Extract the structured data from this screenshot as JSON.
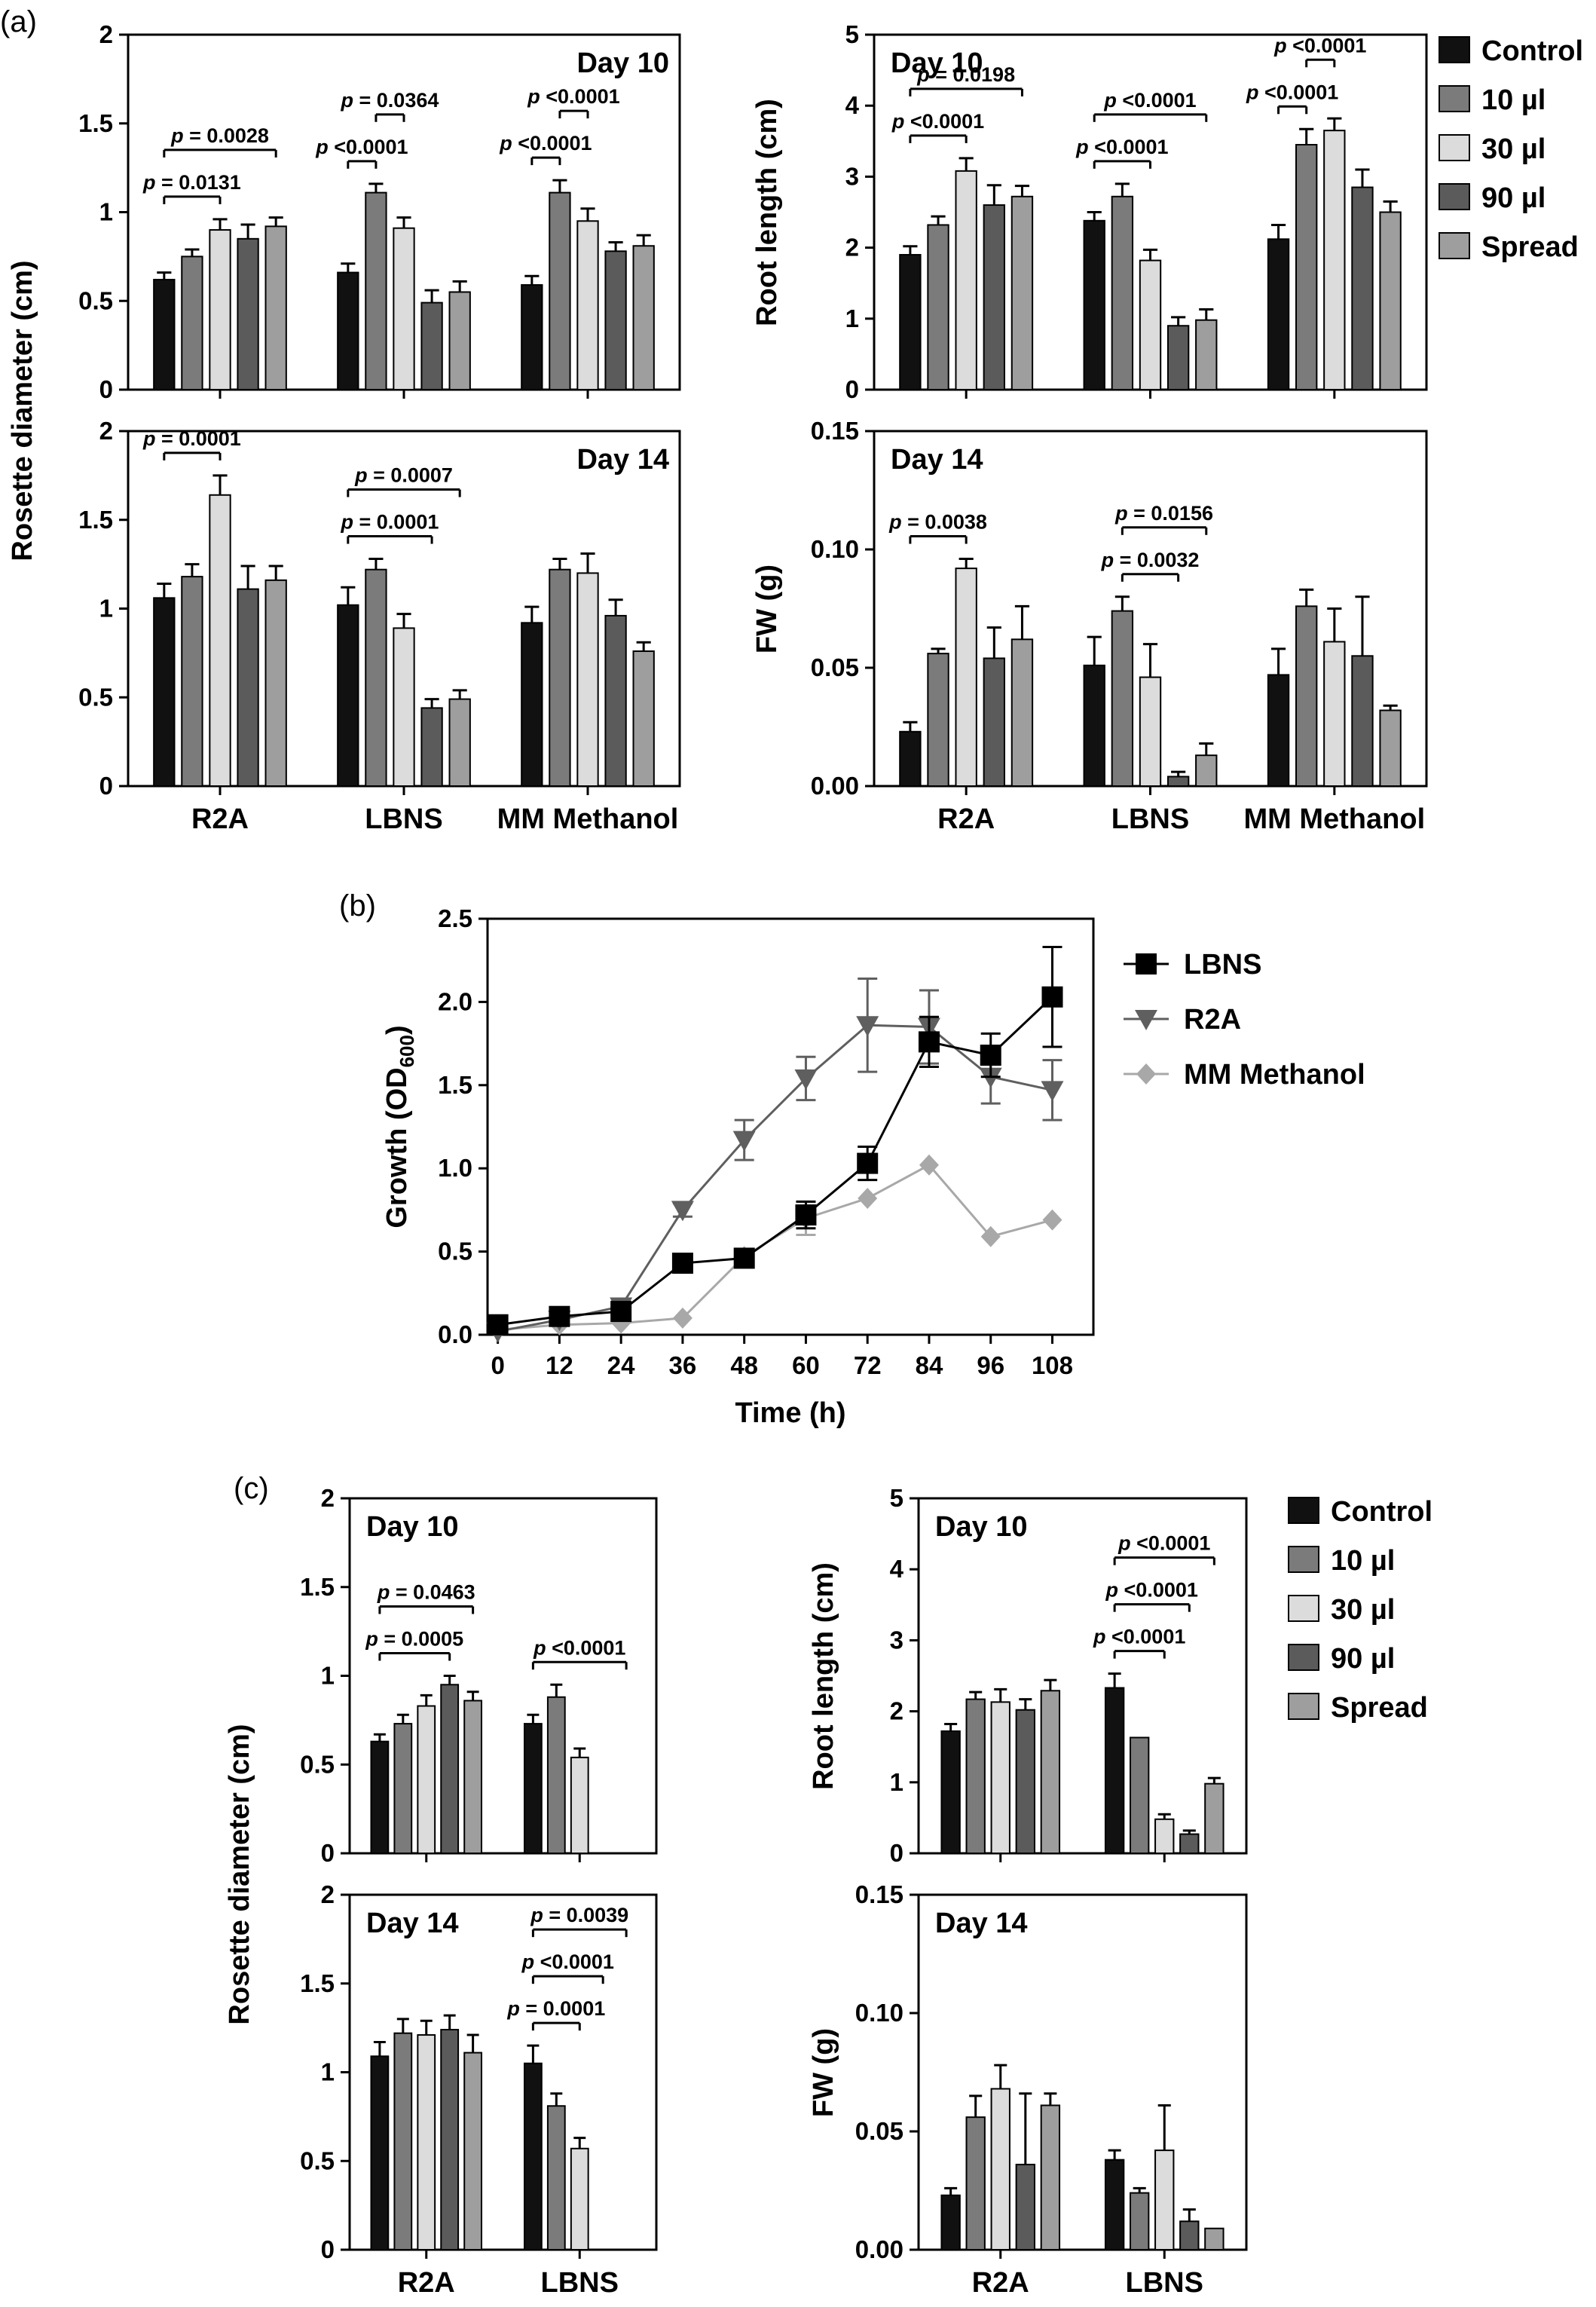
{
  "chart_data": [
    {
      "id": "a_rd10",
      "panel": "(a)",
      "type": "bar",
      "title": "Day 10",
      "ylabel": "Rosette diameter (cm)",
      "ylim": [
        0,
        2
      ],
      "yticks": [
        0,
        0.5,
        1,
        1.5,
        2
      ],
      "ytick_labels": [
        "0",
        "0.5",
        "1",
        "1.5",
        "2"
      ],
      "show_xlabels": false,
      "categories": [
        "R2A",
        "LBNS",
        "MM Methanol"
      ],
      "series": [
        {
          "name": "Control",
          "color": "#111111",
          "values": [
            0.62,
            0.66,
            0.59
          ],
          "errors": [
            0.04,
            0.05,
            0.05
          ]
        },
        {
          "name": "10 µl",
          "color": "#7b7b7b",
          "values": [
            0.75,
            1.11,
            1.11
          ],
          "errors": [
            0.04,
            0.05,
            0.07
          ]
        },
        {
          "name": "30 µl",
          "color": "#dcdcdc",
          "values": [
            0.9,
            0.91,
            0.95
          ],
          "errors": [
            0.06,
            0.06,
            0.07
          ]
        },
        {
          "name": "90 µl",
          "color": "#5b5b5b",
          "values": [
            0.85,
            0.49,
            0.78
          ],
          "errors": [
            0.08,
            0.07,
            0.05
          ]
        },
        {
          "name": "Spread",
          "color": "#9e9e9e",
          "values": [
            0.92,
            0.55,
            0.81
          ],
          "errors": [
            0.05,
            0.06,
            0.06
          ]
        }
      ],
      "brackets": [
        {
          "label": "p = 0.0131",
          "group": 0,
          "from": 0,
          "to": 2
        },
        {
          "label": "p = 0.0028",
          "group": 0,
          "from": 0,
          "to": 4
        },
        {
          "label": "p <0.0001",
          "group": 1,
          "from": 0,
          "to": 1
        },
        {
          "label": "p = 0.0364",
          "group": 1,
          "from": 1,
          "to": 2
        },
        {
          "label": "p <0.0001",
          "group": 2,
          "from": 0,
          "to": 1
        },
        {
          "label": "p <0.0001",
          "group": 2,
          "from": 1,
          "to": 2
        }
      ]
    },
    {
      "id": "a_rd14",
      "panel": "(a)",
      "type": "bar",
      "title": "Day 14",
      "ylabel": "Rosette diameter (cm)",
      "ylim": [
        0,
        2
      ],
      "yticks": [
        0,
        0.5,
        1,
        1.5,
        2
      ],
      "ytick_labels": [
        "0",
        "0.5",
        "1",
        "1.5",
        "2"
      ],
      "show_xlabels": true,
      "categories": [
        "R2A",
        "LBNS",
        "MM Methanol"
      ],
      "series": [
        {
          "name": "Control",
          "color": "#111111",
          "values": [
            1.06,
            1.02,
            0.92
          ],
          "errors": [
            0.08,
            0.1,
            0.09
          ]
        },
        {
          "name": "10 µl",
          "color": "#7b7b7b",
          "values": [
            1.18,
            1.22,
            1.22
          ],
          "errors": [
            0.07,
            0.06,
            0.06
          ]
        },
        {
          "name": "30 µl",
          "color": "#dcdcdc",
          "values": [
            1.64,
            0.89,
            1.2
          ],
          "errors": [
            0.11,
            0.08,
            0.11
          ]
        },
        {
          "name": "90 µl",
          "color": "#5b5b5b",
          "values": [
            1.11,
            0.44,
            0.96
          ],
          "errors": [
            0.13,
            0.05,
            0.09
          ]
        },
        {
          "name": "Spread",
          "color": "#9e9e9e",
          "values": [
            1.16,
            0.49,
            0.76
          ],
          "errors": [
            0.08,
            0.05,
            0.05
          ]
        }
      ],
      "brackets": [
        {
          "label": "p = 0.0001",
          "group": 0,
          "from": 0,
          "to": 2
        },
        {
          "label": "p = 0.0001",
          "group": 1,
          "from": 0,
          "to": 3
        },
        {
          "label": "p = 0.0007",
          "group": 1,
          "from": 0,
          "to": 4
        }
      ]
    },
    {
      "id": "a_rl10",
      "panel": "(a)",
      "type": "bar",
      "title": "Day 10",
      "ylabel": "Root length (cm)",
      "ylim": [
        0,
        5
      ],
      "yticks": [
        0,
        1,
        2,
        3,
        4,
        5
      ],
      "ytick_labels": [
        "0",
        "1",
        "2",
        "3",
        "4",
        "5"
      ],
      "show_xlabels": false,
      "categories": [
        "R2A",
        "LBNS",
        "MM Methanol"
      ],
      "series": [
        {
          "name": "Control",
          "color": "#111111",
          "values": [
            1.9,
            2.38,
            2.12
          ],
          "errors": [
            0.12,
            0.12,
            0.2
          ]
        },
        {
          "name": "10 µl",
          "color": "#7b7b7b",
          "values": [
            2.32,
            2.72,
            3.45
          ],
          "errors": [
            0.12,
            0.18,
            0.22
          ]
        },
        {
          "name": "30 µl",
          "color": "#dcdcdc",
          "values": [
            3.08,
            1.82,
            3.65
          ],
          "errors": [
            0.18,
            0.15,
            0.17
          ]
        },
        {
          "name": "90 µl",
          "color": "#5b5b5b",
          "values": [
            2.6,
            0.9,
            2.85
          ],
          "errors": [
            0.28,
            0.12,
            0.25
          ]
        },
        {
          "name": "Spread",
          "color": "#9e9e9e",
          "values": [
            2.72,
            0.98,
            2.5
          ],
          "errors": [
            0.15,
            0.15,
            0.15
          ]
        }
      ],
      "brackets": [
        {
          "label": "p <0.0001",
          "group": 0,
          "from": 0,
          "to": 2
        },
        {
          "label": "p = 0.0198",
          "group": 0,
          "from": 0,
          "to": 4
        },
        {
          "label": "p <0.0001",
          "group": 1,
          "from": 0,
          "to": 2
        },
        {
          "label": "p <0.0001",
          "group": 1,
          "from": 0,
          "to": 4
        },
        {
          "label": "p <0.0001",
          "group": 2,
          "from": 0,
          "to": 1
        },
        {
          "label": "p <0.0001",
          "group": 2,
          "from": 1,
          "to": 2
        }
      ]
    },
    {
      "id": "a_fw14",
      "panel": "(a)",
      "type": "bar",
      "title": "Day 14",
      "ylabel": "FW (g)",
      "ylim": [
        0,
        0.15
      ],
      "yticks": [
        0,
        0.05,
        0.1,
        0.15
      ],
      "ytick_labels": [
        "0.00",
        "0.05",
        "0.10",
        "0.15"
      ],
      "show_xlabels": true,
      "categories": [
        "R2A",
        "LBNS",
        "MM Methanol"
      ],
      "series": [
        {
          "name": "Control",
          "color": "#111111",
          "values": [
            0.023,
            0.051,
            0.047
          ],
          "errors": [
            0.004,
            0.012,
            0.011
          ]
        },
        {
          "name": "10 µl",
          "color": "#7b7b7b",
          "values": [
            0.056,
            0.074,
            0.076
          ],
          "errors": [
            0.002,
            0.006,
            0.007
          ]
        },
        {
          "name": "30 µl",
          "color": "#dcdcdc",
          "values": [
            0.092,
            0.046,
            0.061
          ],
          "errors": [
            0.004,
            0.014,
            0.014
          ]
        },
        {
          "name": "90 µl",
          "color": "#5b5b5b",
          "values": [
            0.054,
            0.004,
            0.055
          ],
          "errors": [
            0.013,
            0.002,
            0.025
          ]
        },
        {
          "name": "Spread",
          "color": "#9e9e9e",
          "values": [
            0.062,
            0.013,
            0.032
          ],
          "errors": [
            0.014,
            0.005,
            0.002
          ]
        }
      ],
      "brackets": [
        {
          "label": "p = 0.0038",
          "group": 0,
          "from": 0,
          "to": 2
        },
        {
          "label": "p = 0.0032",
          "group": 1,
          "from": 1,
          "to": 3
        },
        {
          "label": "p = 0.0156",
          "group": 1,
          "from": 1,
          "to": 4
        }
      ]
    },
    {
      "id": "b_growth",
      "panel": "(b)",
      "type": "line",
      "xlabel": "Time (h)",
      "ylabel_main": "Growth (OD",
      "ylabel_sub": "600",
      "ylabel_end": ")",
      "xlim": [
        -2,
        116
      ],
      "ylim": [
        0,
        2.5
      ],
      "x": [
        0,
        12,
        24,
        36,
        48,
        60,
        72,
        84,
        96,
        108
      ],
      "xtick_labels": [
        "0",
        "12",
        "24",
        "36",
        "48",
        "60",
        "72",
        "84",
        "96",
        "108"
      ],
      "yticks": [
        0,
        0.5,
        1.0,
        1.5,
        2.0,
        2.5
      ],
      "ytick_labels": [
        "0.0",
        "0.5",
        "1.0",
        "1.5",
        "2.0",
        "2.5"
      ],
      "series": [
        {
          "name": "LBNS",
          "color": "#000000",
          "marker": "square",
          "values": [
            0.06,
            0.11,
            0.14,
            0.43,
            0.46,
            0.72,
            1.03,
            1.76,
            1.68,
            2.03
          ],
          "errors": [
            0.02,
            0.02,
            0.04,
            0.04,
            0.05,
            0.08,
            0.1,
            0.15,
            0.13,
            0.3
          ]
        },
        {
          "name": "R2A",
          "color": "#5f5f5f",
          "marker": "triangle-down",
          "values": [
            0.02,
            0.09,
            0.17,
            0.75,
            1.17,
            1.54,
            1.86,
            1.85,
            1.55,
            1.47
          ],
          "errors": [
            0.01,
            0.02,
            0.04,
            0.04,
            0.12,
            0.13,
            0.28,
            0.22,
            0.16,
            0.18
          ]
        },
        {
          "name": "MM Methanol",
          "color": "#a8a8a8",
          "marker": "diamond",
          "values": [
            0.03,
            0.06,
            0.07,
            0.1,
            0.47,
            0.7,
            0.82,
            1.02,
            0.59,
            0.69
          ],
          "errors": [
            0.0,
            0.0,
            0.0,
            0.0,
            0.0,
            0.1,
            0.0,
            0.0,
            0.0,
            0.0
          ]
        }
      ]
    },
    {
      "id": "c_rd10",
      "panel": "(c)",
      "type": "bar",
      "title": "Day 10",
      "ylabel": "Rosette diameter (cm)",
      "ylim": [
        0,
        2
      ],
      "yticks": [
        0,
        0.5,
        1,
        1.5,
        2
      ],
      "ytick_labels": [
        "0",
        "0.5",
        "1",
        "1.5",
        "2"
      ],
      "show_xlabels": false,
      "categories": [
        "R2A",
        "LBNS"
      ],
      "series": [
        {
          "name": "Control",
          "color": "#111111",
          "values": [
            0.63,
            0.73
          ],
          "errors": [
            0.04,
            0.05
          ]
        },
        {
          "name": "10 µl",
          "color": "#7b7b7b",
          "values": [
            0.73,
            0.88
          ],
          "errors": [
            0.05,
            0.07
          ]
        },
        {
          "name": "30 µl",
          "color": "#dcdcdc",
          "values": [
            0.83,
            0.54
          ],
          "errors": [
            0.06,
            0.05
          ]
        },
        {
          "name": "90 µl",
          "color": "#5b5b5b",
          "values": [
            0.95,
            null
          ],
          "errors": [
            0.05,
            null
          ]
        },
        {
          "name": "Spread",
          "color": "#9e9e9e",
          "values": [
            0.86,
            null
          ],
          "errors": [
            0.05,
            null
          ]
        }
      ],
      "brackets": [
        {
          "label": "p = 0.0005",
          "group": 0,
          "from": 0,
          "to": 3
        },
        {
          "label": "p = 0.0463",
          "group": 0,
          "from": 0,
          "to": 4
        },
        {
          "label": "p <0.0001",
          "group": 1,
          "from": 0,
          "to": 4
        }
      ]
    },
    {
      "id": "c_rd14",
      "panel": "(c)",
      "type": "bar",
      "title": "Day 14",
      "ylabel": "Rosette diameter (cm)",
      "ylim": [
        0,
        2
      ],
      "yticks": [
        0,
        0.5,
        1,
        1.5,
        2
      ],
      "ytick_labels": [
        "0",
        "0.5",
        "1",
        "1.5",
        "2"
      ],
      "show_xlabels": true,
      "categories": [
        "R2A",
        "LBNS"
      ],
      "series": [
        {
          "name": "Control",
          "color": "#111111",
          "values": [
            1.09,
            1.05
          ],
          "errors": [
            0.08,
            0.1
          ]
        },
        {
          "name": "10 µl",
          "color": "#7b7b7b",
          "values": [
            1.22,
            0.81
          ],
          "errors": [
            0.08,
            0.07
          ]
        },
        {
          "name": "30 µl",
          "color": "#dcdcdc",
          "values": [
            1.21,
            0.57
          ],
          "errors": [
            0.08,
            0.06
          ]
        },
        {
          "name": "90 µl",
          "color": "#5b5b5b",
          "values": [
            1.24,
            null
          ],
          "errors": [
            0.08,
            null
          ]
        },
        {
          "name": "Spread",
          "color": "#9e9e9e",
          "values": [
            1.11,
            null
          ],
          "errors": [
            0.1,
            null
          ]
        }
      ],
      "brackets": [
        {
          "label": "p = 0.0001",
          "group": 1,
          "from": 0,
          "to": 2
        },
        {
          "label": "p <0.0001",
          "group": 1,
          "from": 0,
          "to": 3
        },
        {
          "label": "p = 0.0039",
          "group": 1,
          "from": 0,
          "to": 4
        }
      ]
    },
    {
      "id": "c_rl10",
      "panel": "(c)",
      "type": "bar",
      "title": "Day 10",
      "ylabel": "Root length (cm)",
      "ylim": [
        0,
        5
      ],
      "yticks": [
        0,
        1,
        2,
        3,
        4,
        5
      ],
      "ytick_labels": [
        "0",
        "1",
        "2",
        "3",
        "4",
        "5"
      ],
      "show_xlabels": false,
      "categories": [
        "R2A",
        "LBNS"
      ],
      "series": [
        {
          "name": "Control",
          "color": "#111111",
          "values": [
            1.72,
            2.33
          ],
          "errors": [
            0.1,
            0.2
          ]
        },
        {
          "name": "10 µl",
          "color": "#7b7b7b",
          "values": [
            2.17,
            1.63
          ],
          "errors": [
            0.1,
            0.0
          ]
        },
        {
          "name": "30 µl",
          "color": "#dcdcdc",
          "values": [
            2.13,
            0.48
          ],
          "errors": [
            0.18,
            0.07
          ]
        },
        {
          "name": "90 µl",
          "color": "#5b5b5b",
          "values": [
            2.02,
            0.27
          ],
          "errors": [
            0.15,
            0.05
          ]
        },
        {
          "name": "Spread",
          "color": "#9e9e9e",
          "values": [
            2.29,
            0.98
          ],
          "errors": [
            0.15,
            0.08
          ]
        }
      ],
      "brackets": [
        {
          "label": "p <0.0001",
          "group": 1,
          "from": 0,
          "to": 2
        },
        {
          "label": "p <0.0001",
          "group": 1,
          "from": 0,
          "to": 3
        },
        {
          "label": "p <0.0001",
          "group": 1,
          "from": 0,
          "to": 4
        }
      ]
    },
    {
      "id": "c_fw14",
      "panel": "(c)",
      "type": "bar",
      "title": "Day 14",
      "ylabel": "FW (g)",
      "ylim": [
        0,
        0.15
      ],
      "yticks": [
        0,
        0.05,
        0.1,
        0.15
      ],
      "ytick_labels": [
        "0.00",
        "0.05",
        "0.10",
        "0.15"
      ],
      "show_xlabels": true,
      "categories": [
        "R2A",
        "LBNS"
      ],
      "series": [
        {
          "name": "Control",
          "color": "#111111",
          "values": [
            0.023,
            0.038
          ],
          "errors": [
            0.003,
            0.004
          ]
        },
        {
          "name": "10 µl",
          "color": "#7b7b7b",
          "values": [
            0.056,
            0.024
          ],
          "errors": [
            0.009,
            0.002
          ]
        },
        {
          "name": "30 µl",
          "color": "#dcdcdc",
          "values": [
            0.068,
            0.042
          ],
          "errors": [
            0.01,
            0.019
          ]
        },
        {
          "name": "90 µl",
          "color": "#5b5b5b",
          "values": [
            0.036,
            0.012
          ],
          "errors": [
            0.03,
            0.005
          ]
        },
        {
          "name": "Spread",
          "color": "#9e9e9e",
          "values": [
            0.061,
            0.009
          ],
          "errors": [
            0.005,
            0.0
          ]
        }
      ],
      "brackets": []
    }
  ],
  "legend_bar": [
    {
      "label": "Control",
      "color": "#111111"
    },
    {
      "label": "10 µl",
      "color": "#7b7b7b"
    },
    {
      "label": "30 µl",
      "color": "#dcdcdc"
    },
    {
      "label": "90 µl",
      "color": "#5b5b5b"
    },
    {
      "label": "Spread",
      "color": "#9e9e9e"
    }
  ],
  "panel_labels": {
    "a": "(a)",
    "b": "(b)",
    "c": "(c)"
  }
}
